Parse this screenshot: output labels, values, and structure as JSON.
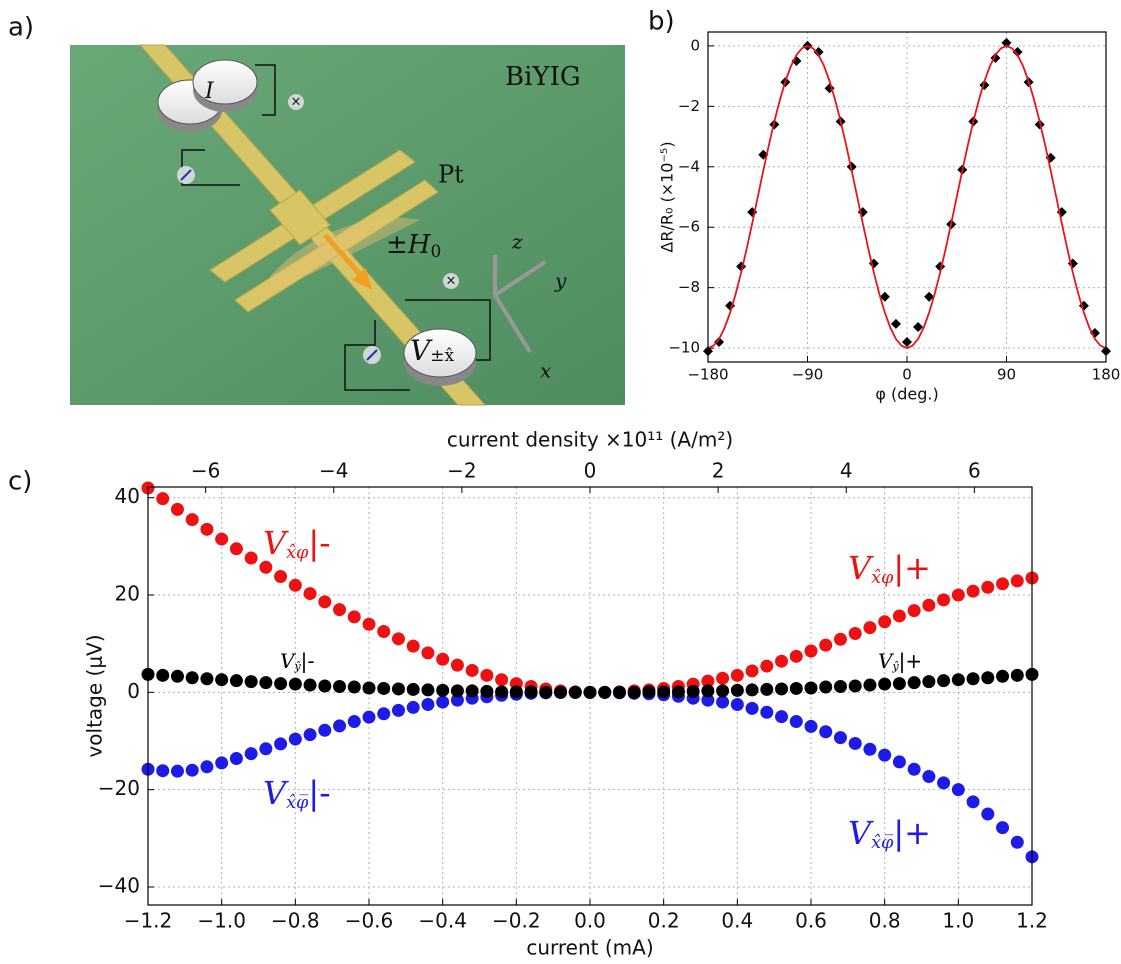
{
  "panel_labels": [
    "a)",
    "b)",
    "c)"
  ],
  "diagram": {
    "material": "BiYIG",
    "electrode": "Pt",
    "field": {
      "main": "±H",
      "sub": "0"
    },
    "voltmeter": {
      "main": "V",
      "sub": "±x̂"
    },
    "current": "I",
    "axes": [
      "x",
      "y",
      "z"
    ]
  },
  "chart_data": [
    {
      "type": "scatter",
      "xlabel": "φ (deg.)",
      "ylabel": "ΔR/R₀ (×10⁻⁵)",
      "xlim": [
        -180,
        180
      ],
      "ylim": [
        -10.46,
        0.46
      ],
      "xticks": [
        {
          "value": -180,
          "label": "−180"
        },
        {
          "value": -90,
          "label": "−90"
        },
        0,
        90,
        180
      ],
      "yticks": [
        {
          "value": -10,
          "label": "−10"
        },
        {
          "value": -8,
          "label": "−8"
        },
        {
          "value": -6,
          "label": "−6"
        },
        {
          "value": -4,
          "label": "−4"
        },
        {
          "value": -2,
          "label": "−2"
        },
        0
      ],
      "grid": true,
      "series": [
        {
          "type": "scatter",
          "marker": "diamond",
          "color": "#000000",
          "x": [
            -180,
            -170,
            -160,
            -150,
            -140,
            -130,
            -120,
            -110,
            -100,
            -90,
            -80,
            -70,
            -60,
            -50,
            -40,
            -30,
            -20,
            -10,
            0,
            10,
            20,
            30,
            40,
            50,
            60,
            70,
            80,
            90,
            100,
            110,
            120,
            130,
            140,
            150,
            160,
            170,
            180
          ],
          "values": [
            -10.1,
            -9.8,
            -8.6,
            -7.3,
            -5.5,
            -3.6,
            -2.6,
            -1.2,
            -0.5,
            0,
            -0.2,
            -1.4,
            -2.5,
            -4.0,
            -5.5,
            -7.2,
            -8.3,
            -9.2,
            -9.8,
            -9.3,
            -8.3,
            -7.3,
            -5.9,
            -4.1,
            -2.5,
            -1.3,
            -0.4,
            0.1,
            -0.2,
            -1.2,
            -2.6,
            -3.7,
            -5.5,
            -7.2,
            -8.6,
            -9.5,
            -10.1
          ]
        },
        {
          "type": "line",
          "color": "#e8141b",
          "x": [
            -180,
            -175,
            -170,
            -165,
            -160,
            -155,
            -150,
            -145,
            -140,
            -135,
            -130,
            -125,
            -120,
            -115,
            -110,
            -105,
            -100,
            -95,
            -90,
            -85,
            -80,
            -75,
            -70,
            -65,
            -60,
            -55,
            -50,
            -45,
            -40,
            -35,
            -30,
            -25,
            -20,
            -15,
            -10,
            -5,
            0,
            5,
            10,
            15,
            20,
            25,
            30,
            35,
            40,
            45,
            50,
            55,
            60,
            65,
            70,
            75,
            80,
            85,
            90,
            95,
            100,
            105,
            110,
            115,
            120,
            125,
            130,
            135,
            140,
            145,
            150,
            155,
            160,
            165,
            170,
            175,
            180
          ],
          "values": [
            -10,
            -9.92,
            -9.7,
            -9.33,
            -8.83,
            -8.21,
            -7.5,
            -6.71,
            -5.87,
            -5,
            -4.13,
            -3.29,
            -2.5,
            -1.79,
            -1.17,
            -0.67,
            -0.3,
            -0.08,
            0,
            -0.08,
            -0.3,
            -0.67,
            -1.17,
            -1.79,
            -2.5,
            -3.29,
            -4.13,
            -5,
            -5.87,
            -6.71,
            -7.5,
            -8.21,
            -8.83,
            -9.33,
            -9.7,
            -9.92,
            -10,
            -9.92,
            -9.7,
            -9.33,
            -8.83,
            -8.21,
            -7.5,
            -6.71,
            -5.87,
            -5,
            -4.13,
            -3.29,
            -2.5,
            -1.79,
            -1.17,
            -0.67,
            -0.3,
            -0.08,
            0,
            -0.08,
            -0.3,
            -0.67,
            -1.17,
            -1.79,
            -2.5,
            -3.29,
            -4.13,
            -5,
            -5.87,
            -6.71,
            -7.5,
            -8.21,
            -8.83,
            -9.33,
            -9.7,
            -9.92,
            -10
          ]
        }
      ]
    },
    {
      "type": "scatter",
      "xlabel": "current (mA)",
      "x2label": "current density ×10¹¹ (A/m²)",
      "ylabel": "voltage (μV)",
      "xlim": [
        -1.2,
        1.2
      ],
      "x2lim": [
        -6.9,
        6.9
      ],
      "ylim": [
        -43.7,
        42.2
      ],
      "xticks": [
        {
          "value": -1.2,
          "label": "−1.2"
        },
        {
          "value": -1,
          "label": "−1.0"
        },
        {
          "value": -0.8,
          "label": "−0.8"
        },
        {
          "value": -0.6,
          "label": "−0.6"
        },
        {
          "value": -0.4,
          "label": "−0.4"
        },
        {
          "value": -0.2,
          "label": "−0.2"
        },
        {
          "value": 0,
          "label": "0.0"
        },
        0.2,
        0.4,
        0.6,
        0.8,
        {
          "value": 1,
          "label": "1.0"
        },
        1.2
      ],
      "x2ticks": [
        {
          "value": -6,
          "label": "−6"
        },
        {
          "value": -4,
          "label": "−4"
        },
        {
          "value": -2,
          "label": "−2"
        },
        0,
        2,
        4,
        6
      ],
      "yticks": [
        {
          "value": -40,
          "label": "−40"
        },
        {
          "value": -20,
          "label": "−20"
        },
        0,
        20,
        40
      ],
      "grid": true,
      "x": [
        -1.2,
        -1.16,
        -1.12,
        -1.08,
        -1.04,
        -1,
        -0.96,
        -0.92,
        -0.88,
        -0.84,
        -0.8,
        -0.76,
        -0.72,
        -0.68,
        -0.64,
        -0.6,
        -0.56,
        -0.52,
        -0.48,
        -0.44,
        -0.4,
        -0.36,
        -0.32,
        -0.28,
        -0.24,
        -0.2,
        -0.16,
        -0.12,
        -0.08,
        -0.04,
        0,
        0.04,
        0.08,
        0.12,
        0.16,
        0.2,
        0.24,
        0.28,
        0.32,
        0.36,
        0.4,
        0.44,
        0.48,
        0.52,
        0.56,
        0.6,
        0.64,
        0.68,
        0.72,
        0.76,
        0.8,
        0.84,
        0.88,
        0.92,
        0.96,
        1,
        1.04,
        1.08,
        1.12,
        1.16,
        1.2
      ],
      "series": [
        {
          "type": "scatter",
          "marker": "circle",
          "color": "#ee1111",
          "values": [
            42,
            39.8,
            37.6,
            35.5,
            33.5,
            31.5,
            29.5,
            27.6,
            25.7,
            23.8,
            22,
            20.3,
            18.6,
            17,
            15.5,
            14,
            12.5,
            11,
            9.5,
            8.1,
            6.8,
            5.6,
            4.5,
            3.5,
            2.6,
            1.8,
            1.2,
            0.7,
            0.3,
            0.1,
            0,
            0,
            0.1,
            0.3,
            0.5,
            0.8,
            1.2,
            1.7,
            2.3,
            2.9,
            3.5,
            4.4,
            5.4,
            6.4,
            7.4,
            8.5,
            9.7,
            10.9,
            12.1,
            13.3,
            14.5,
            15.7,
            16.8,
            17.9,
            19,
            20,
            20.8,
            21.6,
            22.3,
            22.9,
            23.5
          ]
        },
        {
          "type": "scatter",
          "marker": "circle",
          "color": "#1c1ce6",
          "values": [
            -15.8,
            -16.1,
            -16.2,
            -16,
            -15.3,
            -14.5,
            -13.6,
            -12.6,
            -11.6,
            -10.6,
            -9.6,
            -8.7,
            -7.8,
            -6.9,
            -6,
            -5.1,
            -4.4,
            -3.7,
            -3.1,
            -2.5,
            -2,
            -1.6,
            -1.2,
            -0.9,
            -0.6,
            -0.4,
            -0.2,
            -0.1,
            0,
            0,
            0,
            0,
            -0.1,
            -0.2,
            -0.3,
            -0.5,
            -0.8,
            -1.2,
            -1.6,
            -2,
            -2.5,
            -3.3,
            -4.1,
            -5,
            -6,
            -7,
            -8.1,
            -9.3,
            -10.5,
            -11.7,
            -12.9,
            -14.3,
            -15.8,
            -17.3,
            -18.6,
            -20,
            -22.5,
            -25,
            -27.8,
            -30.8,
            -33.8
          ]
        },
        {
          "type": "scatter",
          "marker": "circle",
          "color": "#000000",
          "values": [
            3.7,
            3.5,
            3.3,
            3,
            2.8,
            2.6,
            2.4,
            2.2,
            2,
            1.8,
            1.7,
            1.5,
            1.3,
            1.2,
            1.1,
            0.9,
            0.8,
            0.7,
            0.6,
            0.5,
            0.4,
            0.3,
            0.3,
            0.2,
            0.1,
            0.1,
            0.1,
            0,
            0,
            0,
            0,
            0,
            0,
            0,
            0.1,
            0.1,
            0.1,
            0.2,
            0.3,
            0.3,
            0.4,
            0.5,
            0.6,
            0.7,
            0.8,
            0.9,
            1.1,
            1.2,
            1.3,
            1.5,
            1.7,
            1.8,
            2,
            2.2,
            2.4,
            2.6,
            2.8,
            3,
            3.3,
            3.5,
            3.7
          ]
        }
      ],
      "annotations": [
        {
          "main": "V",
          "sub": "x̂φ",
          "tail": "|-",
          "color": "#ee1111"
        },
        {
          "main": "V",
          "sub": "x̂φ",
          "tail": "|+",
          "color": "#ee1111"
        },
        {
          "main": "V",
          "sub": "ŷ",
          "tail": "|-",
          "color": "#000000"
        },
        {
          "main": "V",
          "sub": "ŷ",
          "tail": "|+",
          "color": "#000000"
        },
        {
          "main": "V",
          "sub": "x̂φ̅",
          "tail": "|-",
          "color": "#1c1ce6"
        },
        {
          "main": "V",
          "sub": "x̂φ̅",
          "tail": "|+",
          "color": "#1c1ce6"
        }
      ]
    }
  ]
}
